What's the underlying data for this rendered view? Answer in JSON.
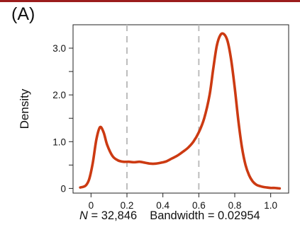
{
  "panel_label": "(A)",
  "footer": {
    "n_symbol": "N",
    "n_text": " = 32,846",
    "bandwidth_text": "Bandwidth = 0.02954"
  },
  "colors": {
    "curve": "#cc3a12",
    "reference_lines": "#bdbdbd",
    "top_bar": "#9b1c1c"
  },
  "chart_data": {
    "type": "line",
    "ylabel": "Density",
    "xlabel": "",
    "xlim": [
      -0.1,
      1.1
    ],
    "ylim": [
      -0.1,
      3.5
    ],
    "x_ticks": [
      0,
      0.2,
      0.4,
      0.6,
      0.8,
      1.0
    ],
    "x_tick_labels": [
      "0",
      "0.2",
      "0.4",
      "0.6",
      "0.8",
      "1.0"
    ],
    "y_ticks": [
      0,
      0.5,
      1.0,
      1.5,
      2.0,
      2.5,
      3.0
    ],
    "y_tick_labels": [
      "0",
      "",
      "1.0",
      "",
      "2.0",
      "",
      "3.0"
    ],
    "reference_lines_x": [
      0.2,
      0.6
    ],
    "series": [
      {
        "x": [
          -0.06,
          -0.03,
          -0.01,
          0.01,
          0.03,
          0.05,
          0.07,
          0.09,
          0.12,
          0.15,
          0.18,
          0.21,
          0.24,
          0.27,
          0.3,
          0.33,
          0.36,
          0.39,
          0.42,
          0.45,
          0.48,
          0.51,
          0.54,
          0.57,
          0.6,
          0.63,
          0.66,
          0.68,
          0.7,
          0.72,
          0.74,
          0.76,
          0.78,
          0.8,
          0.82,
          0.84,
          0.86,
          0.88,
          0.9,
          0.92,
          0.94,
          0.96,
          0.98,
          1.0,
          1.02,
          1.05
        ],
        "y": [
          0.02,
          0.06,
          0.2,
          0.55,
          1.05,
          1.31,
          1.2,
          0.93,
          0.69,
          0.6,
          0.57,
          0.57,
          0.56,
          0.57,
          0.55,
          0.53,
          0.53,
          0.55,
          0.58,
          0.64,
          0.7,
          0.78,
          0.87,
          1.0,
          1.2,
          1.5,
          2.0,
          2.55,
          3.05,
          3.28,
          3.3,
          3.15,
          2.75,
          2.15,
          1.45,
          0.88,
          0.5,
          0.28,
          0.15,
          0.08,
          0.05,
          0.03,
          0.02,
          0.01,
          0.01,
          0.0
        ]
      }
    ]
  }
}
